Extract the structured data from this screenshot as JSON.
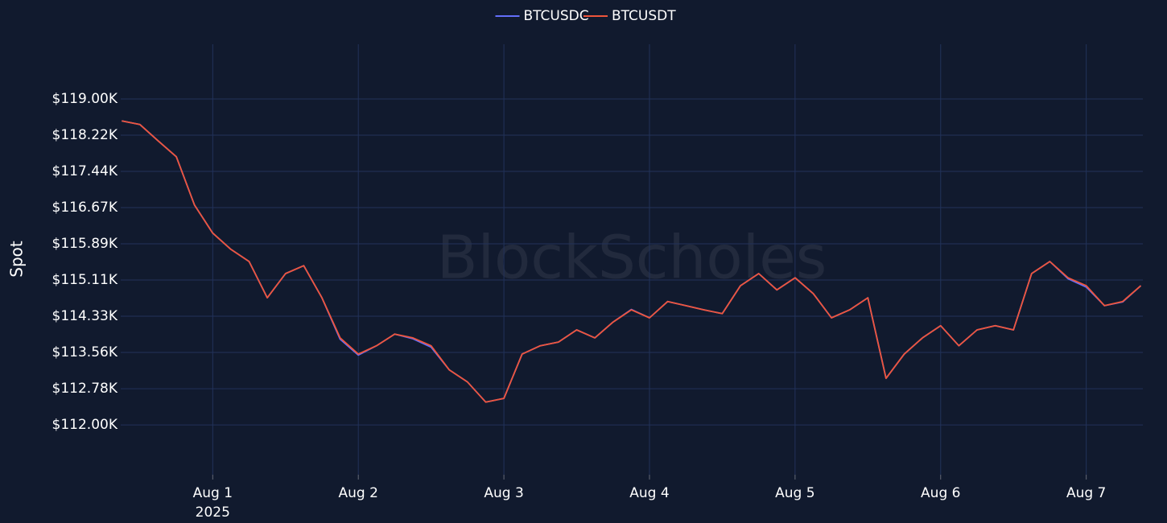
{
  "chart_data": {
    "type": "line",
    "ylabel": "Spot",
    "watermark": "BlockScholes",
    "x_year_label": "2025",
    "background": "#111a2e",
    "grid": true,
    "legend": "top",
    "x": [
      "2025-07-31T09:00",
      "2025-07-31T12:00",
      "2025-07-31T15:00",
      "2025-07-31T18:00",
      "2025-07-31T21:00",
      "2025-08-01T00:00",
      "2025-08-01T03:00",
      "2025-08-01T06:00",
      "2025-08-01T09:00",
      "2025-08-01T12:00",
      "2025-08-01T15:00",
      "2025-08-01T18:00",
      "2025-08-01T21:00",
      "2025-08-02T00:00",
      "2025-08-02T03:00",
      "2025-08-02T06:00",
      "2025-08-02T09:00",
      "2025-08-02T12:00",
      "2025-08-02T15:00",
      "2025-08-02T18:00",
      "2025-08-02T21:00",
      "2025-08-03T00:00",
      "2025-08-03T03:00",
      "2025-08-03T06:00",
      "2025-08-03T09:00",
      "2025-08-03T12:00",
      "2025-08-03T15:00",
      "2025-08-03T18:00",
      "2025-08-03T21:00",
      "2025-08-04T00:00",
      "2025-08-04T03:00",
      "2025-08-04T06:00",
      "2025-08-04T09:00",
      "2025-08-04T12:00",
      "2025-08-04T15:00",
      "2025-08-04T18:00",
      "2025-08-04T21:00",
      "2025-08-05T00:00",
      "2025-08-05T03:00",
      "2025-08-05T06:00",
      "2025-08-05T09:00",
      "2025-08-05T12:00",
      "2025-08-05T15:00",
      "2025-08-05T18:00",
      "2025-08-05T21:00",
      "2025-08-06T00:00",
      "2025-08-06T03:00",
      "2025-08-06T06:00",
      "2025-08-06T09:00",
      "2025-08-06T12:00",
      "2025-08-06T15:00",
      "2025-08-06T18:00",
      "2025-08-06T21:00",
      "2025-08-07T00:00",
      "2025-08-07T03:00",
      "2025-08-07T06:00",
      "2025-08-07T09:00"
    ],
    "series": [
      {
        "name": "BTCUSDC",
        "color": "#636efa",
        "values": [
          118530,
          118450,
          118100,
          117760,
          116720,
          116120,
          115770,
          115510,
          114730,
          115250,
          115420,
          114730,
          113840,
          113500,
          113700,
          113950,
          113850,
          113670,
          113180,
          112920,
          112490,
          112570,
          113520,
          113700,
          113780,
          114040,
          113870,
          114210,
          114480,
          114300,
          114650,
          114560,
          114470,
          114390,
          114990,
          115250,
          114900,
          115160,
          114820,
          114300,
          114470,
          114730,
          113000,
          113520,
          113870,
          114130,
          113700,
          114040,
          114130,
          114040,
          115250,
          115510,
          115140,
          114960,
          114560,
          114640,
          114990
        ]
      },
      {
        "name": "BTCUSDT",
        "color": "#ef553b",
        "values": [
          118530,
          118450,
          118100,
          117760,
          116720,
          116120,
          115770,
          115510,
          114730,
          115250,
          115420,
          114730,
          113870,
          113520,
          113700,
          113950,
          113870,
          113700,
          113180,
          112920,
          112490,
          112570,
          113520,
          113700,
          113780,
          114040,
          113870,
          114210,
          114470,
          114300,
          114650,
          114560,
          114470,
          114390,
          114990,
          115250,
          114900,
          115160,
          114820,
          114300,
          114470,
          114730,
          113000,
          113520,
          113870,
          114130,
          113700,
          114040,
          114130,
          114040,
          115250,
          115510,
          115160,
          114990,
          114560,
          114650,
          114990
        ]
      }
    ],
    "xlim": [
      "2025-07-31T08:50",
      "2025-08-07T09:20"
    ],
    "xticks": [
      {
        "value": "2025-08-01T00:00",
        "label": "Aug 1"
      },
      {
        "value": "2025-08-02T00:00",
        "label": "Aug 2"
      },
      {
        "value": "2025-08-03T00:00",
        "label": "Aug 3"
      },
      {
        "value": "2025-08-04T00:00",
        "label": "Aug 4"
      },
      {
        "value": "2025-08-05T00:00",
        "label": "Aug 5"
      },
      {
        "value": "2025-08-06T00:00",
        "label": "Aug 6"
      },
      {
        "value": "2025-08-07T00:00",
        "label": "Aug 7"
      }
    ],
    "ylim": [
      110930,
      120175
    ],
    "yticks": [
      {
        "value": 112000,
        "label": "$112.00K"
      },
      {
        "value": 112777.78,
        "label": "$112.78K"
      },
      {
        "value": 113555.56,
        "label": "$113.56K"
      },
      {
        "value": 114333.33,
        "label": "$114.33K"
      },
      {
        "value": 115111.11,
        "label": "$115.11K"
      },
      {
        "value": 115888.89,
        "label": "$115.89K"
      },
      {
        "value": 116666.67,
        "label": "$116.67K"
      },
      {
        "value": 117444.44,
        "label": "$117.44K"
      },
      {
        "value": 118222.22,
        "label": "$118.22K"
      },
      {
        "value": 119000,
        "label": "$119.00K"
      }
    ]
  }
}
